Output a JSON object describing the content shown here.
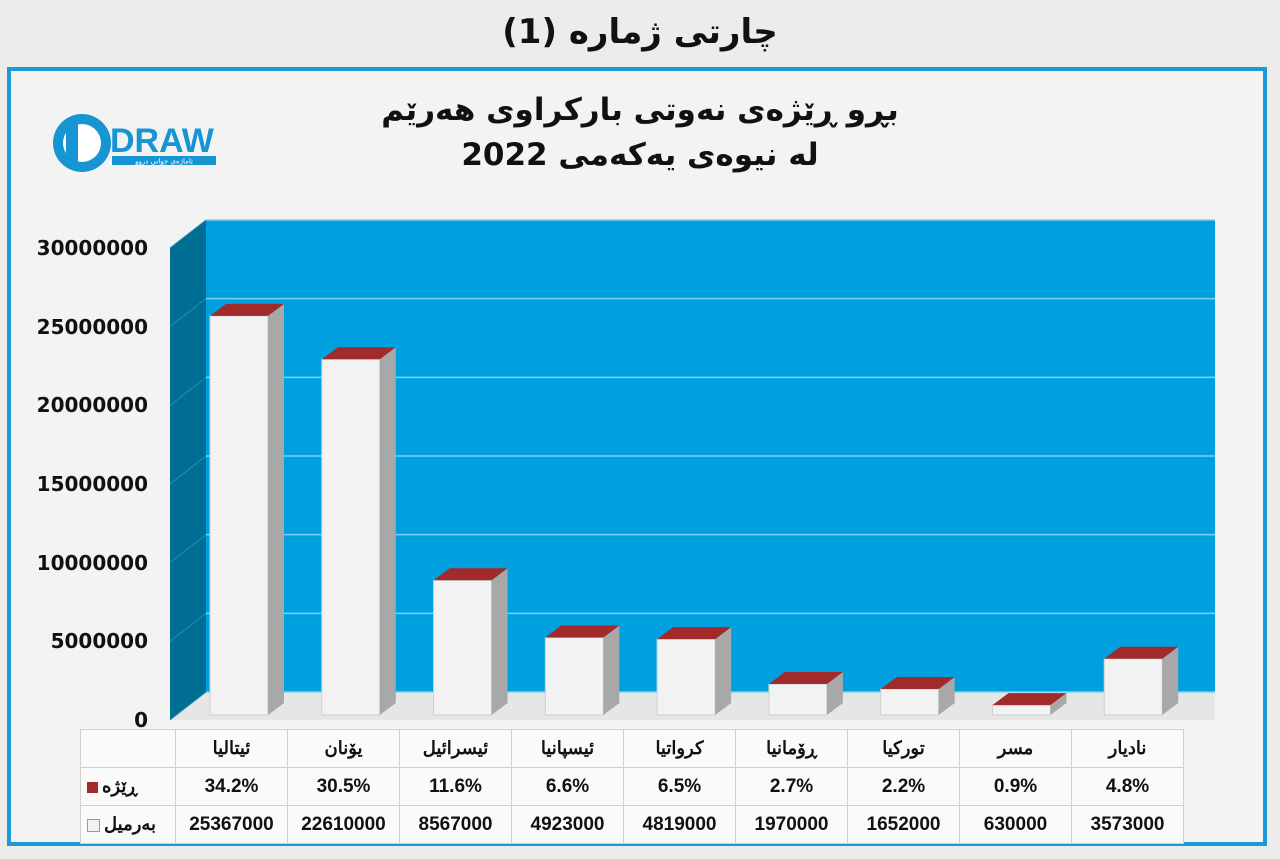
{
  "page_title": "چارتی ژمارە (1)",
  "logo": {
    "text": "DRAW",
    "tagline": "ئاماژەی جوانی دروو"
  },
  "chart_data": {
    "type": "bar",
    "title_line1": "بڕو ڕێژەی نەوتی بارکراوی هەرێم",
    "title_line2": "لە نیوەی یەکەمی 2022",
    "categories": [
      "ئیتاليا",
      "یۆنان",
      "ئیسرائیل",
      "ئیسپانیا",
      "کرواتیا",
      "ڕۆمانیا",
      "تورکیا",
      "مسر",
      "نادیار"
    ],
    "series": [
      {
        "name": "ڕێژە",
        "values": [
          "34.2%",
          "30.5%",
          "11.6%",
          "6.6%",
          "6.5%",
          "2.7%",
          "2.2%",
          "0.9%",
          "4.8%"
        ],
        "color": "#a12a2a"
      },
      {
        "name": "بەرمیل",
        "values": [
          25367000,
          22610000,
          8567000,
          4923000,
          4819000,
          1970000,
          1652000,
          630000,
          3573000
        ],
        "color": "#f2f2f2"
      }
    ],
    "y_ticks": [
      "30000000",
      "25000000",
      "20000000",
      "15000000",
      "10000000",
      "5000000",
      "0"
    ],
    "ylim": [
      0,
      30000000
    ],
    "grid": true,
    "legend": "table"
  },
  "colors": {
    "plot_bg": "#00a0e0",
    "plot_side": "#006d93",
    "frame": "#1a9ad6",
    "bar_top": "#a12a2a",
    "bar_front": "#f2f2f2",
    "bar_side": "#a8a8a8"
  }
}
